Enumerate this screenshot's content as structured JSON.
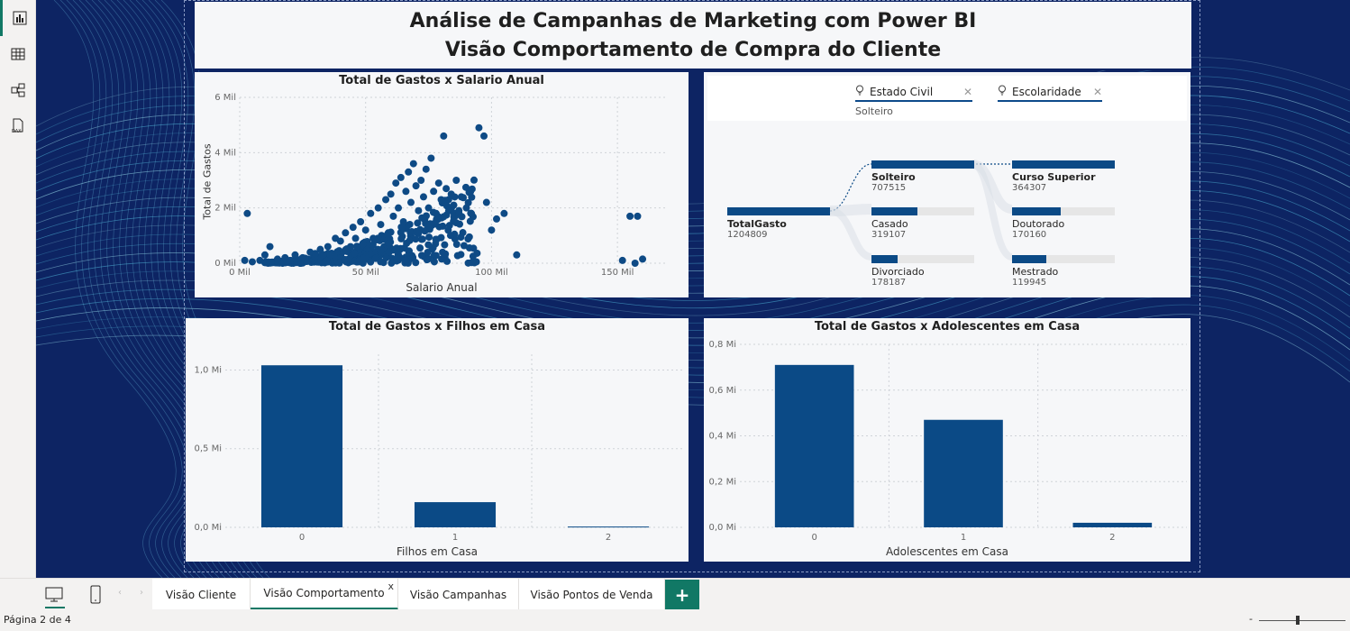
{
  "title": {
    "line1": "Análise de Campanhas de Marketing com Power BI",
    "line2": "Visão Comportamento de Compra do Cliente"
  },
  "rail": {
    "items": [
      {
        "name": "report-view-icon",
        "active": true
      },
      {
        "name": "table-view-icon",
        "active": false
      },
      {
        "name": "model-view-icon",
        "active": false
      },
      {
        "name": "dax-query-icon",
        "active": false,
        "text": "DAX"
      }
    ]
  },
  "scatter": {
    "title": "Total de Gastos x Salario Anual",
    "xlabel": "Salario Anual",
    "ylabel": "Total de Gastos",
    "xticks": [
      "0 Mil",
      "50 Mil",
      "100 Mil",
      "150 Mil"
    ],
    "yticks": [
      "0 Mil",
      "2 Mil",
      "4 Mil",
      "6 Mil"
    ]
  },
  "decomp": {
    "slicers": [
      {
        "label": "Estado Civil",
        "value": "Solteiro"
      },
      {
        "label": "Escolaridade",
        "value": ""
      }
    ],
    "root": {
      "label": "TotalGasto",
      "value": "1204809"
    },
    "level1": [
      {
        "label": "Solteiro",
        "value": "707515",
        "selected": true
      },
      {
        "label": "Casado",
        "value": "319107",
        "selected": false
      },
      {
        "label": "Divorciado",
        "value": "178187",
        "selected": false
      }
    ],
    "level2": [
      {
        "label": "Curso Superior",
        "value": "364307",
        "selected": true
      },
      {
        "label": "Doutorado",
        "value": "170160",
        "selected": false
      },
      {
        "label": "Mestrado",
        "value": "119945",
        "selected": false
      }
    ]
  },
  "filhos": {
    "title": "Total de Gastos x Filhos em Casa",
    "xlabel": "Filhos em Casa",
    "yticks": [
      "0,0 Mi",
      "0,5 Mi",
      "1,0 Mi"
    ]
  },
  "adolescentes": {
    "title": "Total de Gastos x Adolescentes em Casa",
    "xlabel": "Adolescentes em Casa",
    "yticks": [
      "0,0 Mi",
      "0,2 Mi",
      "0,4 Mi",
      "0,6 Mi",
      "0,8 Mi"
    ]
  },
  "chart_data": [
    {
      "type": "scatter",
      "title": "Total de Gastos x Salario Anual",
      "xlabel": "Salario Anual",
      "ylabel": "Total de Gastos",
      "xlim": [
        0,
        170
      ],
      "ylim": [
        0,
        6
      ],
      "x_unit": "Mil",
      "y_unit": "Mil",
      "grid": true,
      "points": [
        [
          3,
          1.8
        ],
        [
          2,
          0.1
        ],
        [
          5,
          0.05
        ],
        [
          8,
          0.1
        ],
        [
          10,
          0.3
        ],
        [
          12,
          0.6
        ],
        [
          15,
          0.15
        ],
        [
          18,
          0.2
        ],
        [
          20,
          0.1
        ],
        [
          22,
          0.3
        ],
        [
          25,
          0.2
        ],
        [
          28,
          0.4
        ],
        [
          30,
          0.35
        ],
        [
          32,
          0.5
        ],
        [
          35,
          0.6
        ],
        [
          36,
          0.3
        ],
        [
          38,
          0.9
        ],
        [
          40,
          0.8
        ],
        [
          42,
          1.1
        ],
        [
          44,
          0.6
        ],
        [
          45,
          1.3
        ],
        [
          46,
          0.9
        ],
        [
          48,
          1.5
        ],
        [
          50,
          1.2
        ],
        [
          52,
          1.8
        ],
        [
          53,
          0.9
        ],
        [
          55,
          2.0
        ],
        [
          56,
          1.4
        ],
        [
          58,
          2.3
        ],
        [
          59,
          1.1
        ],
        [
          60,
          2.5
        ],
        [
          61,
          1.7
        ],
        [
          62,
          2.9
        ],
        [
          63,
          2.0
        ],
        [
          64,
          3.1
        ],
        [
          65,
          1.5
        ],
        [
          66,
          2.6
        ],
        [
          67,
          3.3
        ],
        [
          68,
          2.2
        ],
        [
          69,
          3.6
        ],
        [
          70,
          2.8
        ],
        [
          71,
          1.9
        ],
        [
          72,
          3.0
        ],
        [
          73,
          2.4
        ],
        [
          74,
          3.4
        ],
        [
          75,
          2.0
        ],
        [
          76,
          3.8
        ],
        [
          77,
          2.6
        ],
        [
          78,
          1.8
        ],
        [
          79,
          2.9
        ],
        [
          80,
          2.3
        ],
        [
          81,
          4.6
        ],
        [
          82,
          2.7
        ],
        [
          83,
          1.9
        ],
        [
          84,
          2.5
        ],
        [
          85,
          2.1
        ],
        [
          86,
          3.0
        ],
        [
          88,
          2.4
        ],
        [
          90,
          2.0
        ],
        [
          92,
          1.8
        ],
        [
          95,
          4.9
        ],
        [
          97,
          4.6
        ],
        [
          98,
          2.2
        ],
        [
          100,
          1.2
        ],
        [
          102,
          1.6
        ],
        [
          105,
          1.8
        ],
        [
          110,
          0.3
        ],
        [
          152,
          0.1
        ],
        [
          155,
          1.7
        ],
        [
          158,
          1.7
        ],
        [
          160,
          0.15
        ],
        [
          157,
          0.0
        ]
      ]
    },
    {
      "type": "bar",
      "title": "Total de Gastos x Filhos em Casa",
      "xlabel": "Filhos em Casa",
      "categories": [
        "0",
        "1",
        "2"
      ],
      "values": [
        1.03,
        0.16,
        0.005
      ],
      "unit": "Mi",
      "ylim": [
        0,
        1.1
      ],
      "grid": true
    },
    {
      "type": "bar",
      "title": "Total de Gastos x Adolescentes em Casa",
      "xlabel": "Adolescentes em Casa",
      "categories": [
        "0",
        "1",
        "2"
      ],
      "values": [
        0.71,
        0.47,
        0.02
      ],
      "unit": "Mi",
      "ylim": [
        0,
        0.8
      ],
      "grid": true
    }
  ],
  "tabs": [
    {
      "label": "Visão Cliente",
      "active": false
    },
    {
      "label": "Visão Comportamento",
      "active": true,
      "close": "x"
    },
    {
      "label": "Visão Campanhas",
      "active": false
    },
    {
      "label": "Visão Pontos de Venda",
      "active": false
    }
  ],
  "add_tab_label": "+",
  "status": {
    "page": "Página 2 de 4",
    "zoom_minus": "-"
  },
  "colors": {
    "canvas": "#0d2463",
    "bar": "#0b4a86",
    "accent": "#117865"
  }
}
